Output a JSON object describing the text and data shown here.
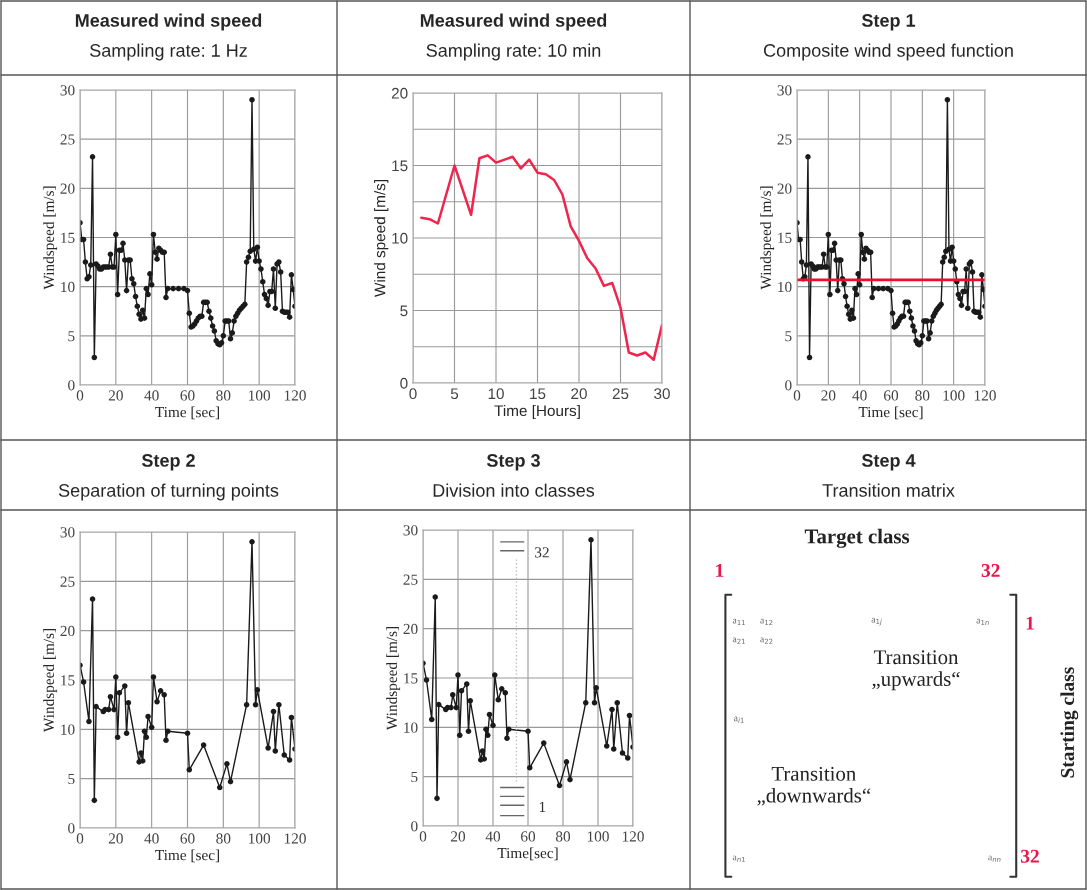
{
  "chart_data": [
    {
      "type": "line",
      "title": "Measured wind speed",
      "subtitle": "Sampling rate: 1 Hz",
      "xlabel": "Time [sec]",
      "ylabel": "Windspeed [m/s]",
      "xlim": [
        0,
        120
      ],
      "ylim": [
        0,
        30
      ],
      "xticks": [
        0,
        20,
        40,
        60,
        80,
        100,
        120
      ],
      "yticks": [
        0,
        5,
        10,
        15,
        20,
        25,
        30
      ],
      "grid": true,
      "marker": "circle",
      "series": [
        {
          "color": "#1a1a1a",
          "x": [
            0,
            1,
            2,
            3,
            4,
            5,
            6,
            7,
            8,
            9,
            10,
            11,
            12,
            13,
            14,
            15,
            16,
            17,
            18,
            19,
            20,
            21,
            22,
            23,
            24,
            25,
            26,
            27,
            28,
            29,
            30,
            31,
            32,
            33,
            34,
            35,
            36,
            37,
            38,
            39,
            40,
            41,
            42,
            43,
            44,
            45,
            46,
            47,
            48,
            49,
            52,
            55,
            58,
            60,
            61,
            62,
            63,
            64,
            65,
            66,
            67,
            68,
            69,
            70,
            71,
            72,
            73,
            74,
            75,
            76,
            77,
            78,
            79,
            80,
            81,
            82,
            83,
            84,
            85,
            86,
            87,
            88,
            89,
            90,
            91,
            92,
            93,
            94,
            95,
            96,
            97,
            98,
            99,
            100,
            101,
            102,
            103,
            104,
            105,
            106,
            107,
            108,
            109,
            110,
            111,
            112,
            113,
            114,
            115,
            116,
            117,
            118,
            119,
            120
          ],
          "values": [
            16.5,
            14.8,
            14.8,
            12.5,
            10.8,
            11,
            12.2,
            23.2,
            2.8,
            12.3,
            12.1,
            11.8,
            11.8,
            12,
            12,
            12,
            12,
            13.3,
            12,
            12,
            15.3,
            9.2,
            13.7,
            13.7,
            14.4,
            12.7,
            9.6,
            12.7,
            12.7,
            10.8,
            10.3,
            9,
            8,
            7.2,
            6.7,
            7.6,
            6.8,
            9.8,
            9.2,
            11.3,
            10.2,
            15.3,
            13.5,
            12.8,
            13.9,
            13.7,
            13.5,
            13.5,
            8.9,
            9.8,
            9.8,
            9.8,
            9.8,
            9.6,
            7.3,
            5.9,
            6,
            6.2,
            6.5,
            6.8,
            7,
            7,
            8.4,
            8.4,
            8.4,
            7.5,
            6.8,
            6,
            5.5,
            4.5,
            4.2,
            4.1,
            4.3,
            5,
            6.5,
            6.5,
            6.5,
            4.7,
            5.3,
            6.5,
            7,
            7.3,
            7.6,
            7.8,
            8,
            8.2,
            12.5,
            13,
            13.6,
            29,
            13.8,
            12.6,
            14,
            12.6,
            11.8,
            10.5,
            9.2,
            8.8,
            8.1,
            9.5,
            9.5,
            11.8,
            7.8,
            12.3,
            12.5,
            11.5,
            7.5,
            7.4,
            7.4,
            7.4,
            6.9,
            11.2,
            9.7,
            8
          ]
        }
      ]
    },
    {
      "type": "line",
      "title": "Measured wind speed",
      "subtitle": "Sampling rate: 10 min",
      "xlabel": "Time [Hours]",
      "ylabel": "Wind speed [m/s]",
      "xlim": [
        0,
        30
      ],
      "ylim": [
        0,
        20
      ],
      "xticks": [
        0,
        5,
        10,
        15,
        20,
        25,
        30
      ],
      "yticks": [
        0,
        {
          "value": 2.5,
          "label": null
        },
        5,
        {
          "value": 7.5,
          "label": null
        },
        10,
        {
          "value": 12.5,
          "label": null
        },
        15,
        {
          "value": 17.5,
          "label": null
        },
        20
      ],
      "grid": true,
      "marker": "none",
      "series": [
        {
          "color": "#f0244c",
          "x": [
            1,
            2,
            3,
            5,
            7,
            8,
            9,
            10,
            12,
            13,
            14,
            15,
            16,
            17,
            18,
            19,
            20,
            21,
            22,
            23,
            24,
            25,
            26,
            27,
            28,
            29,
            30
          ],
          "values": [
            11.4,
            11.3,
            11.0,
            15.0,
            11.6,
            15.5,
            15.7,
            15.2,
            15.6,
            14.8,
            15.4,
            14.5,
            14.4,
            14.0,
            13.0,
            10.8,
            9.8,
            8.6,
            7.9,
            6.7,
            6.9,
            5.2,
            2.1,
            1.9,
            2.1,
            1.6,
            4.0
          ]
        }
      ]
    },
    {
      "type": "line",
      "title": "Step 1",
      "subtitle": "Composite wind speed function",
      "xlabel": "Time [sec]",
      "ylabel": "Windspeed [m/s]",
      "xlim": [
        0,
        120
      ],
      "ylim": [
        0,
        30
      ],
      "xticks": [
        0,
        20,
        40,
        60,
        80,
        100,
        120
      ],
      "yticks": [
        0,
        5,
        10,
        15,
        20,
        25,
        30
      ],
      "grid": true,
      "marker": "circle",
      "series": [
        {
          "color": "#1a1a1a",
          "x": [
            0,
            1,
            2,
            3,
            4,
            5,
            6,
            7,
            8,
            9,
            10,
            11,
            12,
            13,
            14,
            15,
            16,
            17,
            18,
            19,
            20,
            21,
            22,
            23,
            24,
            25,
            26,
            27,
            28,
            29,
            30,
            31,
            32,
            33,
            34,
            35,
            36,
            37,
            38,
            39,
            40,
            41,
            42,
            43,
            44,
            45,
            46,
            47,
            48,
            49,
            52,
            55,
            58,
            60,
            61,
            62,
            63,
            64,
            65,
            66,
            67,
            68,
            69,
            70,
            71,
            72,
            73,
            74,
            75,
            76,
            77,
            78,
            79,
            80,
            81,
            82,
            83,
            84,
            85,
            86,
            87,
            88,
            89,
            90,
            91,
            92,
            93,
            94,
            95,
            96,
            97,
            98,
            99,
            100,
            101,
            102,
            103,
            104,
            105,
            106,
            107,
            108,
            109,
            110,
            111,
            112,
            113,
            114,
            115,
            116,
            117,
            118,
            119,
            120
          ],
          "values": [
            16.5,
            14.8,
            14.8,
            12.5,
            10.8,
            11,
            12.2,
            23.2,
            2.8,
            12.3,
            12.1,
            11.8,
            11.8,
            12,
            12,
            12,
            12,
            13.3,
            12,
            12,
            15.3,
            9.2,
            13.7,
            13.7,
            14.4,
            12.7,
            9.6,
            12.7,
            12.7,
            10.8,
            10.3,
            9,
            8,
            7.2,
            6.7,
            7.6,
            6.8,
            9.8,
            9.2,
            11.3,
            10.2,
            15.3,
            13.5,
            12.8,
            13.9,
            13.7,
            13.5,
            13.5,
            8.9,
            9.8,
            9.8,
            9.8,
            9.8,
            9.6,
            7.3,
            5.9,
            6,
            6.2,
            6.5,
            6.8,
            7,
            7,
            8.4,
            8.4,
            8.4,
            7.5,
            6.8,
            6,
            5.5,
            4.5,
            4.2,
            4.1,
            4.3,
            5,
            6.5,
            6.5,
            6.5,
            4.7,
            5.3,
            6.5,
            7,
            7.3,
            7.6,
            7.8,
            8,
            8.2,
            12.5,
            13,
            13.6,
            29,
            13.8,
            12.6,
            14,
            12.6,
            11.8,
            10.5,
            9.2,
            8.8,
            8.1,
            9.5,
            9.5,
            11.8,
            7.8,
            12.3,
            12.5,
            11.5,
            7.5,
            7.4,
            7.4,
            7.4,
            6.9,
            11.2,
            9.7,
            8
          ]
        }
      ],
      "ref_lines": [
        {
          "axis": "y",
          "value": 10.7,
          "color": "#e8102a",
          "line_style": "solid"
        }
      ]
    },
    {
      "type": "line",
      "title": "Step 2",
      "subtitle": "Separation of turning points",
      "xlabel": "Time [sec]",
      "ylabel": "Windspeed [m/s]",
      "xlim": [
        0,
        120
      ],
      "ylim": [
        0,
        30
      ],
      "xticks": [
        0,
        20,
        40,
        60,
        80,
        100,
        120
      ],
      "yticks": [
        0,
        5,
        10,
        15,
        20,
        25,
        30
      ],
      "grid": true,
      "marker": "circle",
      "series": [
        {
          "color": "#1a1a1a",
          "x": [
            0,
            2,
            5,
            7,
            8,
            9,
            13,
            14,
            16,
            17,
            19,
            20,
            21,
            22,
            25,
            26,
            27,
            33,
            34,
            35,
            36,
            37,
            38,
            40,
            41,
            43,
            45,
            47,
            48,
            49,
            60,
            61,
            69,
            78,
            82,
            84,
            93,
            96,
            98,
            99,
            105,
            108,
            109,
            111,
            114,
            117,
            118,
            120
          ],
          "values": [
            16.5,
            14.8,
            10.8,
            23.2,
            2.8,
            12.3,
            11.8,
            12,
            12,
            13.3,
            12,
            15.3,
            9.2,
            13.7,
            14.4,
            9.6,
            12.7,
            6.7,
            7.6,
            6.8,
            9.8,
            9.2,
            11.3,
            10.2,
            15.3,
            12.8,
            13.9,
            13.5,
            8.9,
            9.8,
            9.6,
            5.9,
            8.4,
            4.1,
            6.5,
            4.7,
            12.5,
            29,
            12.5,
            14,
            8.1,
            11.8,
            7.8,
            12.5,
            7.4,
            6.9,
            11.2,
            8
          ]
        }
      ]
    },
    {
      "type": "line",
      "title": "Step 3",
      "subtitle": "Division into classes",
      "xlabel": "Time[sec]",
      "ylabel": "Windspeed [m/s]",
      "xlim": [
        0,
        120
      ],
      "ylim": [
        0,
        30
      ],
      "xticks": [
        0,
        20,
        40,
        60,
        80,
        100,
        120
      ],
      "yticks": [
        0,
        5,
        10,
        15,
        20,
        25,
        30
      ],
      "grid": true,
      "marker": "circle",
      "series": [
        {
          "color": "#1a1a1a",
          "x": [
            0,
            2,
            5,
            7,
            8,
            9,
            13,
            14,
            16,
            17,
            19,
            20,
            21,
            22,
            25,
            26,
            27,
            33,
            34,
            35,
            36,
            37,
            38,
            40,
            41,
            43,
            45,
            47,
            48,
            49,
            60,
            61,
            69,
            78,
            82,
            84,
            93,
            96,
            98,
            99,
            105,
            108,
            109,
            111,
            114,
            117,
            118,
            120
          ],
          "values": [
            16.5,
            14.8,
            10.8,
            23.2,
            2.8,
            12.3,
            11.8,
            12,
            12,
            13.3,
            12,
            15.3,
            9.2,
            13.7,
            14.4,
            9.6,
            12.7,
            6.7,
            7.6,
            6.8,
            9.8,
            9.2,
            11.3,
            10.2,
            15.3,
            12.8,
            13.9,
            13.5,
            8.9,
            9.8,
            9.6,
            5.9,
            8.4,
            4.1,
            6.5,
            4.7,
            12.5,
            29,
            12.5,
            14,
            8.1,
            11.8,
            7.8,
            12.5,
            7.4,
            6.9,
            11.2,
            8
          ]
        }
      ],
      "annotations": [
        "32",
        "1"
      ]
    },
    {
      "type": "other",
      "title": "Step 4",
      "subtitle": "Transition matrix",
      "annotations": [
        "Target class",
        "1",
        "32",
        "1",
        "32",
        "Starting class",
        "Transition\n„upwards“",
        "Transition\n„downwards“",
        "a$_{11}$",
        "a$_{12}$",
        "a$_{1j}$",
        "a$_{1n}$",
        "a$_{21}$",
        "a$_{22}$",
        "a$_{i1}$",
        "a$_{n1}$",
        "a$_{nn}$"
      ]
    }
  ]
}
